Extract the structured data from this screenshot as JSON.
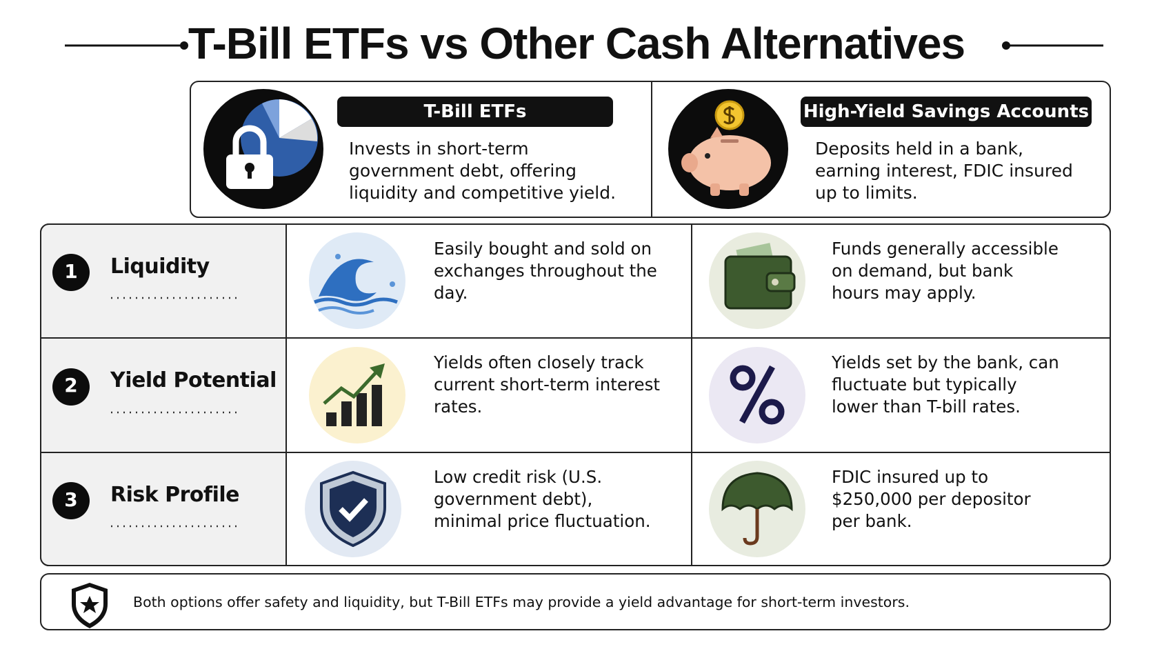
{
  "title": "T-Bill ETFs vs Other Cash Alternatives",
  "columns": [
    {
      "title": "T-Bill ETFs",
      "description": "Invests in short-term government debt, offering liquidity and competitive yield."
    },
    {
      "title": "High-Yield Savings Accounts",
      "description": "Deposits held in a bank, earning interest, FDIC insured up to limits."
    }
  ],
  "rows": [
    {
      "number": "1",
      "label": "Liquidity",
      "cells": [
        "Easily bought and sold on exchanges throughout the day.",
        "Funds generally accessible on demand, but bank hours may apply."
      ]
    },
    {
      "number": "2",
      "label": "Yield Potential",
      "cells": [
        "Yields often closely track current short-term interest rates.",
        "Yields set by the bank, can fluctuate but typically lower than T-bill rates."
      ]
    },
    {
      "number": "3",
      "label": "Risk Profile",
      "cells": [
        "Low credit risk (U.S. government debt), minimal price fluctuation.",
        "FDIC insured up to $250,000 per depositor per bank."
      ]
    }
  ],
  "footer": "Both options offer safety and liquidity, but T-Bill ETFs may provide a yield advantage for short-term investors."
}
